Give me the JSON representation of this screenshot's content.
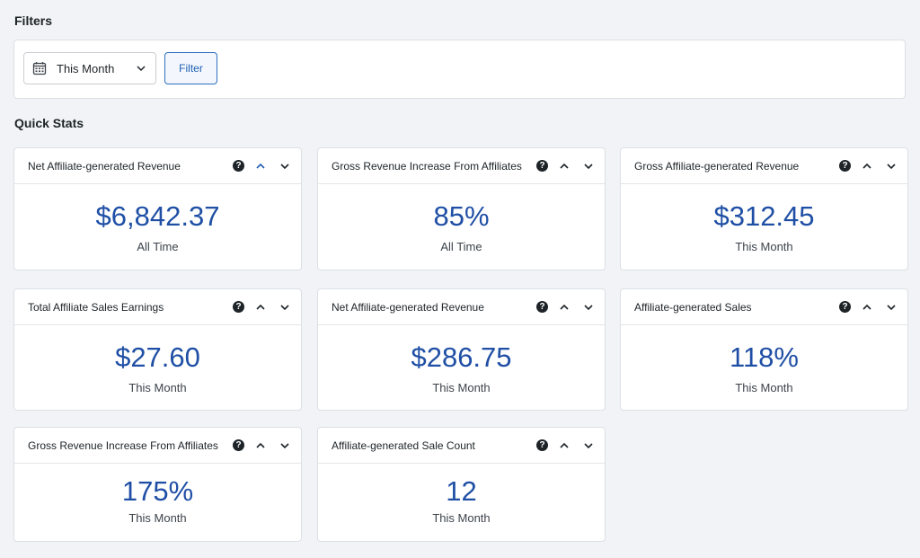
{
  "filters": {
    "title": "Filters",
    "date_range": {
      "selected": "This Month",
      "icon": "calendar-icon"
    },
    "filter_button": "Filter"
  },
  "quick_stats": {
    "title": "Quick Stats",
    "cards": [
      {
        "title": "Net Affiliate-generated Revenue",
        "value": "$6,842.37",
        "period": "All Time",
        "up_active": true
      },
      {
        "title": "Gross Revenue Increase From Affiliates",
        "value": "85%",
        "period": "All Time",
        "up_active": false
      },
      {
        "title": "Gross Affiliate-generated Revenue",
        "value": "$312.45",
        "period": "This Month",
        "up_active": false
      },
      {
        "title": "Total Affiliate Sales Earnings",
        "value": "$27.60",
        "period": "This Month",
        "up_active": false
      },
      {
        "title": "Net Affiliate-generated Revenue",
        "value": "$286.75",
        "period": "This Month",
        "up_active": false
      },
      {
        "title": "Affiliate-generated Sales",
        "value": "118%",
        "period": "This Month",
        "up_active": false
      },
      {
        "title": "Gross Revenue Increase From Affiliates",
        "value": "175%",
        "period": "This Month",
        "up_active": false
      },
      {
        "title": "Affiliate-generated Sale Count",
        "value": "12",
        "period": "This Month",
        "up_active": false
      }
    ],
    "help_glyph": "?"
  },
  "colors": {
    "value_blue": "#1f4fa5",
    "active_arrow": "#1f5fb3",
    "inactive_arrow": "#1d2327"
  }
}
